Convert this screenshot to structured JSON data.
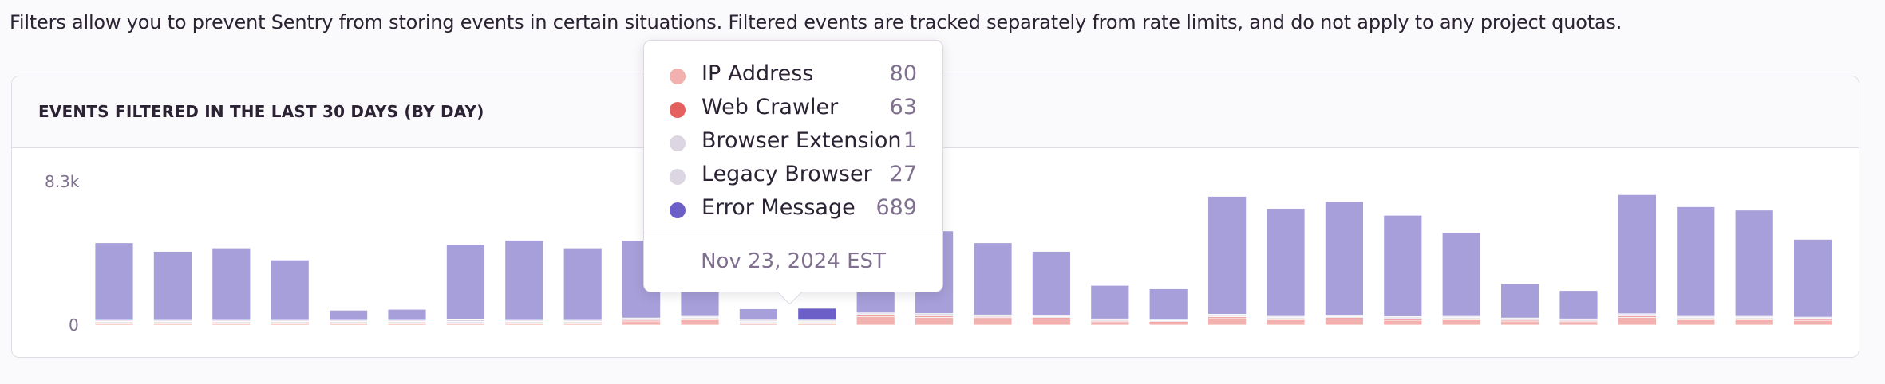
{
  "description": "Filters allow you to prevent Sentry from storing events in certain situations. Filtered events are tracked separately from rate limits, and do not apply to any project quotas.",
  "panel": {
    "title": "EVENTS FILTERED IN THE LAST 30 DAYS (BY DAY)"
  },
  "chart_data": {
    "type": "bar",
    "stacked": true,
    "y_ticks": [
      "8.3k",
      "0"
    ],
    "ylim": [
      0,
      8300
    ],
    "grid": false,
    "series": [
      {
        "name": "IP Address",
        "color": "#f2b0ae",
        "values": [
          60,
          60,
          60,
          60,
          30,
          30,
          60,
          60,
          60,
          200,
          300,
          80,
          80,
          500,
          450,
          380,
          350,
          150,
          120,
          420,
          300,
          350,
          280,
          300,
          200,
          150,
          450,
          300,
          300,
          250
        ]
      },
      {
        "name": "Web Crawler",
        "color": "#e5615f",
        "values": [
          10,
          10,
          10,
          10,
          60,
          10,
          60,
          60,
          10,
          60,
          60,
          63,
          63,
          60,
          60,
          60,
          60,
          60,
          60,
          60,
          60,
          60,
          60,
          60,
          60,
          60,
          60,
          60,
          60,
          60
        ]
      },
      {
        "name": "Browser Extension",
        "color": "#dbd6e1",
        "values": [
          1,
          1,
          1,
          1,
          1,
          1,
          1,
          1,
          1,
          1,
          1,
          1,
          1,
          1,
          1,
          1,
          1,
          1,
          1,
          1,
          1,
          1,
          1,
          1,
          1,
          1,
          1,
          1,
          1,
          1
        ]
      },
      {
        "name": "Legacy Browser",
        "color": "#dbd6e1",
        "values": [
          20,
          20,
          20,
          20,
          20,
          20,
          100,
          20,
          20,
          20,
          20,
          27,
          27,
          60,
          80,
          60,
          60,
          40,
          40,
          60,
          60,
          60,
          60,
          60,
          40,
          40,
          60,
          60,
          60,
          60
        ]
      },
      {
        "name": "Error Message",
        "color": "#a79fd9",
        "values": [
          4510,
          4010,
          4210,
          3510,
          590,
          640,
          4380,
          4660,
          4210,
          4520,
          1420,
          660,
          689,
          1240,
          4810,
          4200,
          3730,
          1950,
          1780,
          6860,
          6280,
          6630,
          5900,
          4880,
          2000,
          1650,
          6930,
          6380,
          6180,
          4530
        ]
      }
    ],
    "highlight_index": 12,
    "highlight_color": "#6c5fc7"
  },
  "tooltip": {
    "rows": [
      {
        "label": "IP Address",
        "value": "80",
        "color": "#f2b0ae"
      },
      {
        "label": "Web Crawler",
        "value": "63",
        "color": "#e5615f"
      },
      {
        "label": "Browser Extension",
        "value": "1",
        "color": "#dbd6e1"
      },
      {
        "label": "Legacy Browser",
        "value": "27",
        "color": "#dbd6e1"
      },
      {
        "label": "Error Message",
        "value": "689",
        "color": "#6c5fc7"
      }
    ],
    "date": "Nov 23, 2024 EST"
  }
}
